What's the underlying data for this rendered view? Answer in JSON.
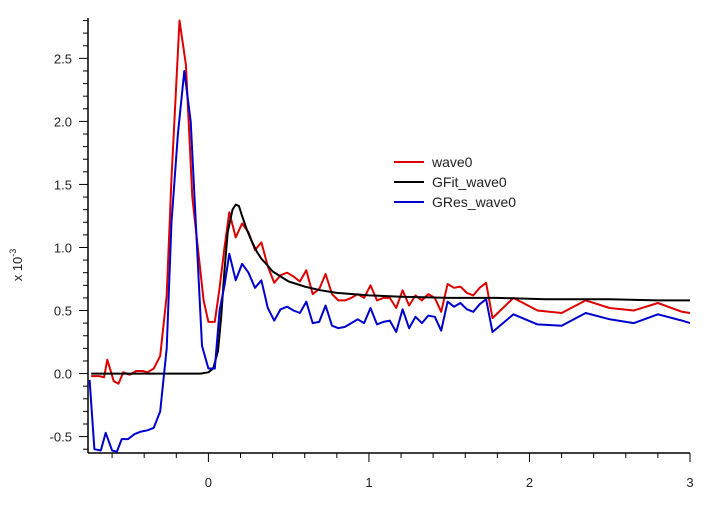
{
  "chart_data": {
    "type": "line",
    "xlim": [
      -0.75,
      3.0
    ],
    "ylim": [
      -0.63,
      2.82
    ],
    "ylabel_prefix": "x 10",
    "ylabel_exponent": "-3",
    "x_ticks": [
      {
        "value": 0,
        "label": "0"
      },
      {
        "value": 1,
        "label": "1"
      },
      {
        "value": 2,
        "label": "2"
      },
      {
        "value": 3,
        "label": "3"
      }
    ],
    "y_ticks": [
      {
        "value": -0.5,
        "label": "-0.5"
      },
      {
        "value": 0.0,
        "label": "0.0"
      },
      {
        "value": 0.5,
        "label": "0.5"
      },
      {
        "value": 1.0,
        "label": "1.0"
      },
      {
        "value": 1.5,
        "label": "1.5"
      },
      {
        "value": 2.0,
        "label": "2.0"
      },
      {
        "value": 2.5,
        "label": "2.5"
      }
    ],
    "legend_position": "upper-right",
    "series": [
      {
        "name": "wave0",
        "color": "#dd0000",
        "points": [
          [
            -0.73,
            -0.02
          ],
          [
            -0.68,
            -0.02
          ],
          [
            -0.65,
            -0.03
          ],
          [
            -0.63,
            0.11
          ],
          [
            -0.59,
            -0.06
          ],
          [
            -0.56,
            -0.08
          ],
          [
            -0.53,
            0.01
          ],
          [
            -0.49,
            -0.01
          ],
          [
            -0.45,
            0.02
          ],
          [
            -0.41,
            0.02
          ],
          [
            -0.38,
            0.01
          ],
          [
            -0.34,
            0.04
          ],
          [
            -0.3,
            0.14
          ],
          [
            -0.26,
            0.62
          ],
          [
            -0.23,
            1.55
          ],
          [
            -0.18,
            2.8
          ],
          [
            -0.14,
            2.45
          ],
          [
            -0.1,
            1.4
          ],
          [
            -0.03,
            0.58
          ],
          [
            0.0,
            0.41
          ],
          [
            0.04,
            0.41
          ],
          [
            0.07,
            0.68
          ],
          [
            0.1,
            1.0
          ],
          [
            0.13,
            1.28
          ],
          [
            0.17,
            1.08
          ],
          [
            0.21,
            1.19
          ],
          [
            0.25,
            1.12
          ],
          [
            0.29,
            0.98
          ],
          [
            0.33,
            1.04
          ],
          [
            0.37,
            0.85
          ],
          [
            0.41,
            0.72
          ],
          [
            0.45,
            0.78
          ],
          [
            0.49,
            0.8
          ],
          [
            0.53,
            0.77
          ],
          [
            0.57,
            0.73
          ],
          [
            0.61,
            0.82
          ],
          [
            0.65,
            0.63
          ],
          [
            0.69,
            0.67
          ],
          [
            0.73,
            0.79
          ],
          [
            0.77,
            0.63
          ],
          [
            0.81,
            0.58
          ],
          [
            0.85,
            0.58
          ],
          [
            0.89,
            0.6
          ],
          [
            0.93,
            0.63
          ],
          [
            0.97,
            0.6
          ],
          [
            1.01,
            0.7
          ],
          [
            1.05,
            0.58
          ],
          [
            1.09,
            0.6
          ],
          [
            1.13,
            0.6
          ],
          [
            1.17,
            0.52
          ],
          [
            1.21,
            0.66
          ],
          [
            1.25,
            0.54
          ],
          [
            1.29,
            0.62
          ],
          [
            1.33,
            0.58
          ],
          [
            1.37,
            0.63
          ],
          [
            1.41,
            0.6
          ],
          [
            1.45,
            0.49
          ],
          [
            1.49,
            0.71
          ],
          [
            1.53,
            0.68
          ],
          [
            1.57,
            0.69
          ],
          [
            1.61,
            0.64
          ],
          [
            1.65,
            0.62
          ],
          [
            1.69,
            0.68
          ],
          [
            1.73,
            0.72
          ],
          [
            1.77,
            0.44
          ],
          [
            1.9,
            0.6
          ],
          [
            2.05,
            0.5
          ],
          [
            2.2,
            0.48
          ],
          [
            2.35,
            0.58
          ],
          [
            2.5,
            0.52
          ],
          [
            2.65,
            0.5
          ],
          [
            2.8,
            0.56
          ],
          [
            2.95,
            0.49
          ],
          [
            3.0,
            0.48
          ]
        ]
      },
      {
        "name": "GFit_wave0",
        "color": "#000000",
        "points": [
          [
            -0.73,
            0.0
          ],
          [
            -0.5,
            0.0
          ],
          [
            -0.2,
            0.0
          ],
          [
            -0.05,
            0.0
          ],
          [
            0.0,
            0.01
          ],
          [
            0.03,
            0.04
          ],
          [
            0.06,
            0.18
          ],
          [
            0.08,
            0.45
          ],
          [
            0.1,
            0.82
          ],
          [
            0.12,
            1.12
          ],
          [
            0.15,
            1.3
          ],
          [
            0.17,
            1.34
          ],
          [
            0.19,
            1.33
          ],
          [
            0.21,
            1.25
          ],
          [
            0.24,
            1.14
          ],
          [
            0.27,
            1.05
          ],
          [
            0.3,
            0.97
          ],
          [
            0.33,
            0.91
          ],
          [
            0.36,
            0.87
          ],
          [
            0.4,
            0.81
          ],
          [
            0.45,
            0.77
          ],
          [
            0.5,
            0.73
          ],
          [
            0.6,
            0.69
          ],
          [
            0.7,
            0.66
          ],
          [
            0.8,
            0.64
          ],
          [
            0.9,
            0.63
          ],
          [
            1.0,
            0.62
          ],
          [
            1.2,
            0.61
          ],
          [
            1.5,
            0.6
          ],
          [
            1.8,
            0.6
          ],
          [
            2.1,
            0.59
          ],
          [
            2.5,
            0.59
          ],
          [
            2.8,
            0.58
          ],
          [
            3.0,
            0.58
          ]
        ]
      },
      {
        "name": "GRes_wave0",
        "color": "#0000cc",
        "points": [
          [
            -0.74,
            -0.05
          ],
          [
            -0.71,
            -0.6
          ],
          [
            -0.67,
            -0.61
          ],
          [
            -0.64,
            -0.47
          ],
          [
            -0.6,
            -0.61
          ],
          [
            -0.57,
            -0.62
          ],
          [
            -0.54,
            -0.52
          ],
          [
            -0.5,
            -0.52
          ],
          [
            -0.46,
            -0.48
          ],
          [
            -0.42,
            -0.46
          ],
          [
            -0.38,
            -0.45
          ],
          [
            -0.34,
            -0.43
          ],
          [
            -0.3,
            -0.3
          ],
          [
            -0.26,
            0.2
          ],
          [
            -0.23,
            1.2
          ],
          [
            -0.19,
            1.9
          ],
          [
            -0.15,
            2.4
          ],
          [
            -0.11,
            2.0
          ],
          [
            -0.04,
            0.22
          ],
          [
            0.0,
            0.04
          ],
          [
            0.04,
            0.04
          ],
          [
            0.07,
            0.5
          ],
          [
            0.1,
            0.7
          ],
          [
            0.13,
            0.95
          ],
          [
            0.17,
            0.74
          ],
          [
            0.21,
            0.87
          ],
          [
            0.25,
            0.8
          ],
          [
            0.29,
            0.68
          ],
          [
            0.33,
            0.74
          ],
          [
            0.37,
            0.52
          ],
          [
            0.41,
            0.42
          ],
          [
            0.45,
            0.51
          ],
          [
            0.49,
            0.53
          ],
          [
            0.53,
            0.5
          ],
          [
            0.57,
            0.48
          ],
          [
            0.61,
            0.57
          ],
          [
            0.65,
            0.4
          ],
          [
            0.69,
            0.41
          ],
          [
            0.73,
            0.54
          ],
          [
            0.77,
            0.38
          ],
          [
            0.81,
            0.36
          ],
          [
            0.85,
            0.37
          ],
          [
            0.89,
            0.4
          ],
          [
            0.93,
            0.43
          ],
          [
            0.97,
            0.4
          ],
          [
            1.01,
            0.52
          ],
          [
            1.05,
            0.39
          ],
          [
            1.09,
            0.41
          ],
          [
            1.13,
            0.42
          ],
          [
            1.17,
            0.33
          ],
          [
            1.21,
            0.51
          ],
          [
            1.25,
            0.36
          ],
          [
            1.29,
            0.45
          ],
          [
            1.33,
            0.4
          ],
          [
            1.37,
            0.46
          ],
          [
            1.41,
            0.45
          ],
          [
            1.45,
            0.34
          ],
          [
            1.49,
            0.57
          ],
          [
            1.53,
            0.53
          ],
          [
            1.57,
            0.56
          ],
          [
            1.61,
            0.51
          ],
          [
            1.65,
            0.49
          ],
          [
            1.69,
            0.55
          ],
          [
            1.73,
            0.59
          ],
          [
            1.77,
            0.33
          ],
          [
            1.9,
            0.47
          ],
          [
            2.05,
            0.39
          ],
          [
            2.2,
            0.38
          ],
          [
            2.35,
            0.48
          ],
          [
            2.5,
            0.43
          ],
          [
            2.65,
            0.4
          ],
          [
            2.8,
            0.47
          ],
          [
            2.95,
            0.42
          ],
          [
            3.0,
            0.4
          ]
        ]
      }
    ]
  }
}
